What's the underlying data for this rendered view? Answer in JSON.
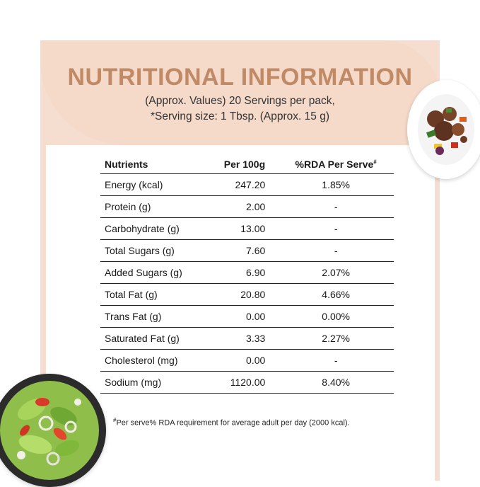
{
  "title": "NUTRITIONAL INFORMATION",
  "subtitle_line1": "(Approx. Values) 20 Servings per pack,",
  "subtitle_line2": "*Serving size: 1 Tbsp. (Approx. 15 g)",
  "table": {
    "headers": [
      "Nutrients",
      "Per 100g",
      "%RDA Per Serve"
    ],
    "header_mark": "#",
    "rows": [
      [
        "Energy (kcal)",
        "247.20",
        "1.85%"
      ],
      [
        "Protein (g)",
        "2.00",
        "-"
      ],
      [
        "Carbohydrate (g)",
        "13.00",
        "-"
      ],
      [
        "Total Sugars (g)",
        "7.60",
        "-"
      ],
      [
        "Added Sugars (g)",
        "6.90",
        "2.07%"
      ],
      [
        "Total Fat (g)",
        "20.80",
        "4.66%"
      ],
      [
        "Trans Fat (g)",
        "0.00",
        "0.00%"
      ],
      [
        "Saturated Fat (g)",
        "3.33",
        "2.27%"
      ],
      [
        "Cholesterol (mg)",
        "0.00",
        "-"
      ],
      [
        "Sodium (mg)",
        "1120.00",
        "8.40%"
      ]
    ]
  },
  "footnote_mark": "#",
  "footnote": "Per serve% RDA requirement for average adult per day (2000 kcal).",
  "colors": {
    "accent": "#c08a67",
    "header_bg": "#f5d9c9"
  },
  "images": {
    "top_right": "stir-fry-plate",
    "bottom_left": "salad-bowl"
  }
}
